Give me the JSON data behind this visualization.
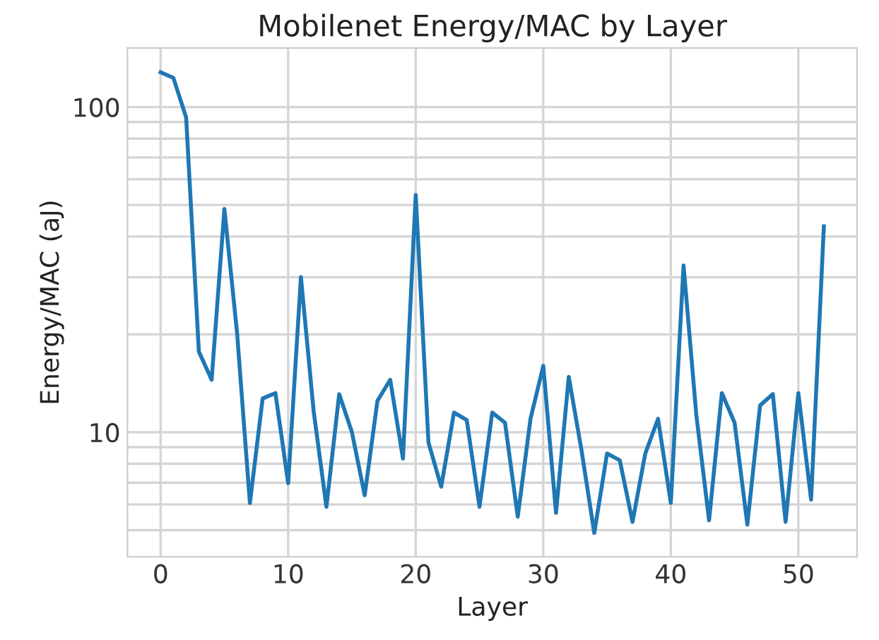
{
  "chart_data": {
    "type": "line",
    "title": "Mobilenet Energy/MAC by Layer",
    "xlabel": "Layer",
    "ylabel": "Energy/MAC (aJ)",
    "x": [
      0,
      1,
      2,
      3,
      4,
      5,
      6,
      7,
      8,
      9,
      10,
      11,
      12,
      13,
      14,
      15,
      16,
      17,
      18,
      19,
      20,
      21,
      22,
      23,
      24,
      25,
      26,
      27,
      28,
      29,
      30,
      31,
      32,
      33,
      34,
      35,
      36,
      37,
      38,
      39,
      40,
      41,
      42,
      43,
      44,
      45,
      46,
      47,
      48,
      49,
      50,
      51,
      52
    ],
    "series": [
      {
        "color": "#1f77b4",
        "values": [
          128,
          123,
          93,
          17.7,
          14.5,
          48.6,
          20.1,
          6.06,
          12.7,
          13.2,
          6.97,
          30,
          11.6,
          5.9,
          13.1,
          10,
          6.4,
          12.5,
          14.5,
          8.3,
          53.7,
          9.3,
          6.8,
          11.5,
          10.9,
          5.9,
          11.5,
          10.7,
          5.5,
          11.0,
          16,
          5.65,
          14.8,
          8.8,
          4.9,
          8.6,
          8.2,
          5.3,
          8.6,
          11.0,
          6.06,
          32.6,
          11.3,
          5.36,
          13.2,
          10.7,
          5.2,
          12.1,
          13.1,
          5.3,
          13.2,
          6.2,
          43
        ]
      }
    ],
    "log": true,
    "xlim": [
      -2.6,
      54.6
    ],
    "ylim": [
      4.14,
      152
    ],
    "xticks": [
      0,
      10,
      20,
      30,
      40,
      50
    ],
    "yticks": [
      {
        "value": 5,
        "label": null
      },
      {
        "value": 6,
        "label": null
      },
      {
        "value": 7,
        "label": null
      },
      {
        "value": 8,
        "label": null
      },
      {
        "value": 9,
        "label": null
      },
      10,
      {
        "value": 20,
        "label": null
      },
      {
        "value": 30,
        "label": null
      },
      {
        "value": 40,
        "label": null
      },
      {
        "value": 50,
        "label": null
      },
      {
        "value": 60,
        "label": null
      },
      {
        "value": 70,
        "label": null
      },
      {
        "value": 80,
        "label": null
      },
      {
        "value": 90,
        "label": null
      },
      100
    ],
    "grid": true,
    "marker": "none",
    "line_style": "solid"
  }
}
